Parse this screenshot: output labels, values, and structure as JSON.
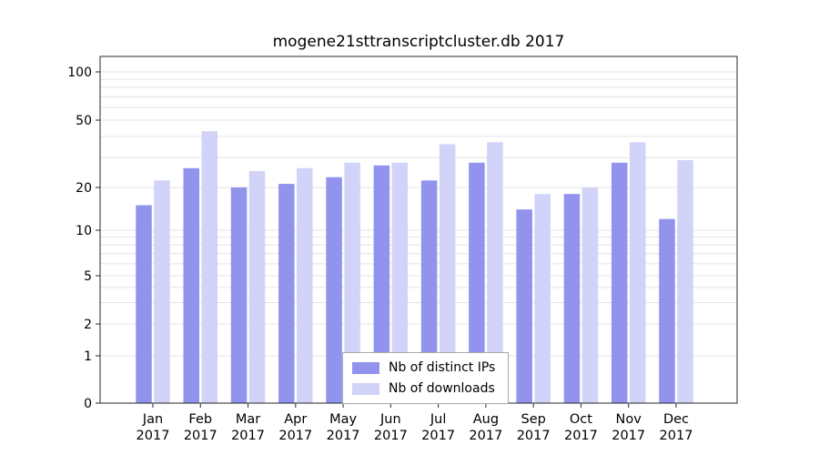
{
  "chart_data": {
    "type": "bar",
    "title": "mogene21sttranscriptcluster.db 2017",
    "year_label": "2017",
    "categories": [
      "Jan",
      "Feb",
      "Mar",
      "Apr",
      "May",
      "Jun",
      "Jul",
      "Aug",
      "Sep",
      "Oct",
      "Nov",
      "Dec"
    ],
    "series": [
      {
        "name": "Nb of distinct IPs",
        "color": "#9193ed",
        "values": [
          15,
          26,
          20,
          21,
          23,
          27,
          22,
          28,
          14,
          18,
          28,
          12
        ]
      },
      {
        "name": "Nb of downloads",
        "color": "#d2d3f8",
        "values": [
          22,
          43,
          25,
          26,
          28,
          28,
          36,
          37,
          18,
          20,
          37,
          29
        ]
      }
    ],
    "yscale": "symlog",
    "yticks": [
      0,
      1,
      2,
      5,
      10,
      20,
      50,
      100
    ],
    "ylim": [
      0,
      120
    ],
    "grid": true,
    "legend_position": "bottom-center"
  }
}
